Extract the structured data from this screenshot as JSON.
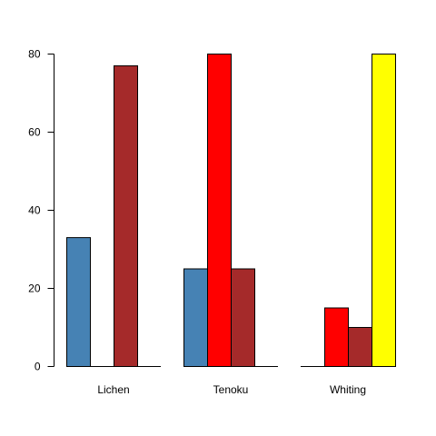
{
  "chart_data": {
    "type": "bar",
    "layout": "grouped",
    "categories": [
      "Lichen",
      "Tenoku",
      "Whiting"
    ],
    "series": [
      {
        "values": [
          33,
          25,
          0
        ],
        "color": "#4682B4"
      },
      {
        "values": [
          0,
          80,
          15
        ],
        "color": "#FF0000"
      },
      {
        "values": [
          77,
          25,
          10
        ],
        "color": "#A52A2A"
      },
      {
        "values": [
          0,
          0,
          80
        ],
        "color": "#FFFF00"
      }
    ],
    "y_ticks": [
      0,
      20,
      40,
      60,
      80
    ],
    "ylim": [
      0,
      80
    ],
    "grid": false,
    "legend": "none"
  }
}
